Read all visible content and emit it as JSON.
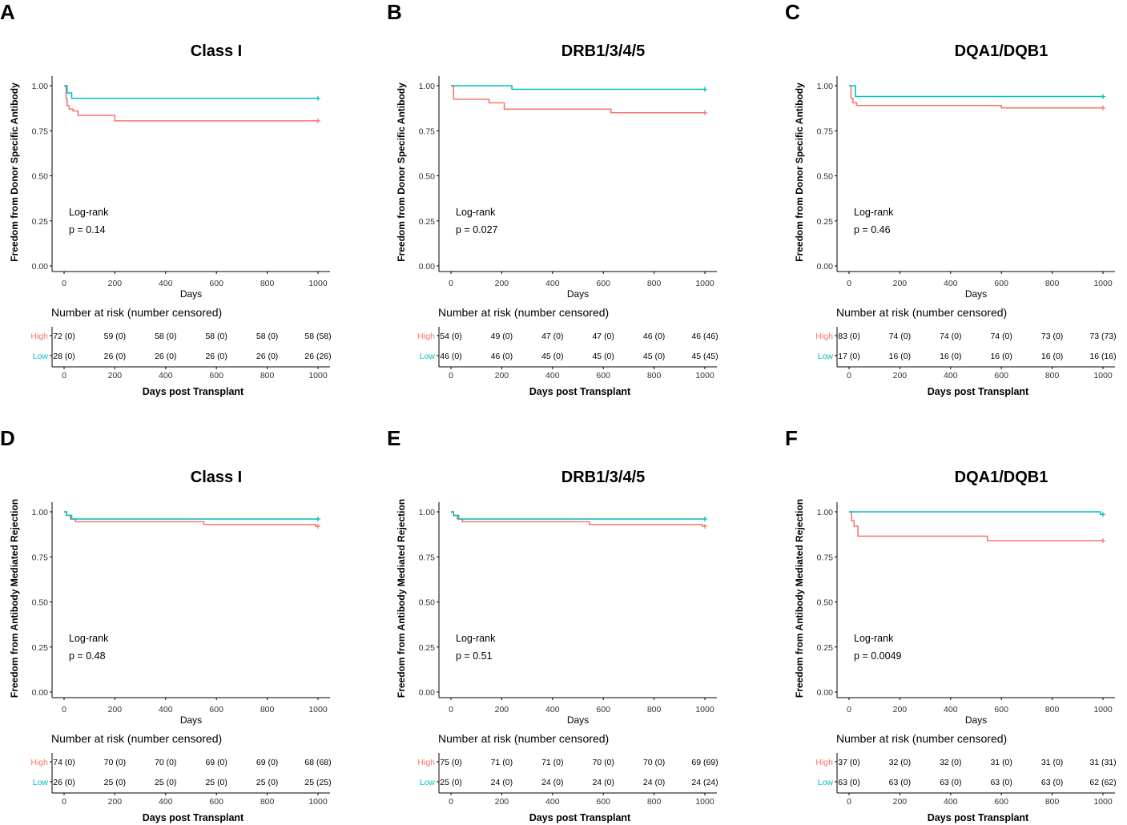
{
  "colors": {
    "high": "#F8766D",
    "low": "#00BFC4",
    "axis": "#000000",
    "text": "#000000"
  },
  "common": {
    "ylabel_top": "Freedom from Donor Specific Antibody",
    "ylabel_bottom": "Freedom from Antibody Mediated Rejection",
    "xlabel": "Days",
    "risk_title": "Number at risk (number censored)",
    "risk_xlabel": "Days post Transplant",
    "logrank_label": "Log-rank",
    "strata": [
      "High",
      "Low"
    ],
    "xticks": [
      0,
      200,
      400,
      600,
      800,
      1000
    ],
    "yticks": [
      "0.00",
      "0.25",
      "0.50",
      "0.75",
      "1.00"
    ]
  },
  "chart_data": [
    {
      "panel_letter": "A",
      "type": "line",
      "title": "Class I",
      "xlabel": "Days",
      "ylabel": "Freedom from Donor Specific Antibody",
      "xlim": [
        0,
        1000
      ],
      "ylim": [
        0,
        1
      ],
      "pvalue": "p = 0.14",
      "series": [
        {
          "name": "High",
          "x": [
            0,
            8,
            12,
            20,
            35,
            55,
            200,
            1000
          ],
          "y": [
            1.0,
            0.93,
            0.89,
            0.87,
            0.86,
            0.835,
            0.805,
            0.805
          ],
          "censor": [
            [
              1000,
              0.805
            ]
          ]
        },
        {
          "name": "Low",
          "x": [
            0,
            12,
            30,
            1000
          ],
          "y": [
            1.0,
            0.96,
            0.93,
            0.93
          ],
          "censor": [
            [
              1000,
              0.93
            ]
          ]
        }
      ],
      "risk_table": {
        "High": [
          "72 (0)",
          "59 (0)",
          "58 (0)",
          "58 (0)",
          "58 (0)",
          "58 (58)"
        ],
        "Low": [
          "28 (0)",
          "26 (0)",
          "26 (0)",
          "26 (0)",
          "26 (0)",
          "26 (26)"
        ]
      }
    },
    {
      "panel_letter": "B",
      "type": "line",
      "title": "DRB1/3/4/5",
      "xlabel": "Days",
      "ylabel": "Freedom from Donor Specific Antibody",
      "xlim": [
        0,
        1000
      ],
      "ylim": [
        0,
        1
      ],
      "pvalue": "p = 0.027",
      "series": [
        {
          "name": "High",
          "x": [
            0,
            10,
            150,
            210,
            630,
            1000
          ],
          "y": [
            1.0,
            0.925,
            0.905,
            0.87,
            0.85,
            0.85
          ],
          "censor": [
            [
              1000,
              0.85
            ]
          ]
        },
        {
          "name": "Low",
          "x": [
            0,
            240,
            1000
          ],
          "y": [
            1.0,
            0.98,
            0.98
          ],
          "censor": [
            [
              1000,
              0.98
            ]
          ]
        }
      ],
      "risk_table": {
        "High": [
          "54 (0)",
          "49 (0)",
          "47 (0)",
          "47 (0)",
          "46 (0)",
          "46 (46)"
        ],
        "Low": [
          "46 (0)",
          "46 (0)",
          "45 (0)",
          "45 (0)",
          "45 (0)",
          "45 (45)"
        ]
      }
    },
    {
      "panel_letter": "C",
      "type": "line",
      "title": "DQA1/DQB1",
      "xlabel": "Days",
      "ylabel": "Freedom from Donor Specific Antibody",
      "xlim": [
        0,
        1000
      ],
      "ylim": [
        0,
        1
      ],
      "pvalue": "p = 0.46",
      "series": [
        {
          "name": "High",
          "x": [
            0,
            8,
            15,
            30,
            600,
            1000
          ],
          "y": [
            1.0,
            0.93,
            0.905,
            0.89,
            0.877,
            0.877
          ],
          "censor": [
            [
              1000,
              0.877
            ]
          ]
        },
        {
          "name": "Low",
          "x": [
            0,
            25,
            1000
          ],
          "y": [
            1.0,
            0.94,
            0.94
          ],
          "censor": [
            [
              1000,
              0.94
            ]
          ]
        }
      ],
      "risk_table": {
        "High": [
          "83 (0)",
          "74 (0)",
          "74 (0)",
          "74 (0)",
          "73 (0)",
          "73 (73)"
        ],
        "Low": [
          "17 (0)",
          "16 (0)",
          "16 (0)",
          "16 (0)",
          "16 (0)",
          "16 (16)"
        ]
      }
    },
    {
      "panel_letter": "D",
      "type": "line",
      "title": "Class I",
      "xlabel": "Days",
      "ylabel": "Freedom from Antibody Mediated Rejection",
      "xlim": [
        0,
        1000
      ],
      "ylim": [
        0,
        1
      ],
      "pvalue": "p = 0.48",
      "series": [
        {
          "name": "High",
          "x": [
            0,
            10,
            25,
            45,
            550,
            990,
            1000
          ],
          "y": [
            1.0,
            0.98,
            0.96,
            0.945,
            0.93,
            0.92,
            0.92
          ],
          "censor": [
            [
              1000,
              0.92
            ]
          ]
        },
        {
          "name": "Low",
          "x": [
            0,
            10,
            30,
            1000
          ],
          "y": [
            1.0,
            0.98,
            0.96,
            0.96
          ],
          "censor": [
            [
              1000,
              0.96
            ]
          ]
        }
      ],
      "risk_table": {
        "High": [
          "74 (0)",
          "70 (0)",
          "70 (0)",
          "69 (0)",
          "69 (0)",
          "68 (68)"
        ],
        "Low": [
          "26 (0)",
          "25 (0)",
          "25 (0)",
          "25 (0)",
          "25 (0)",
          "25 (25)"
        ]
      }
    },
    {
      "panel_letter": "E",
      "type": "line",
      "title": "DRB1/3/4/5",
      "xlabel": "Days",
      "ylabel": "Freedom from Antibody Mediated Rejection",
      "xlim": [
        0,
        1000
      ],
      "ylim": [
        0,
        1
      ],
      "pvalue": "p = 0.51",
      "series": [
        {
          "name": "High",
          "x": [
            0,
            10,
            25,
            45,
            545,
            990,
            1000
          ],
          "y": [
            1.0,
            0.98,
            0.96,
            0.945,
            0.93,
            0.92,
            0.92
          ],
          "censor": [
            [
              1000,
              0.92
            ]
          ]
        },
        {
          "name": "Low",
          "x": [
            0,
            10,
            30,
            1000
          ],
          "y": [
            1.0,
            0.98,
            0.96,
            0.96
          ],
          "censor": [
            [
              1000,
              0.96
            ]
          ]
        }
      ],
      "risk_table": {
        "High": [
          "75 (0)",
          "71 (0)",
          "71 (0)",
          "70 (0)",
          "70 (0)",
          "69 (69)"
        ],
        "Low": [
          "25 (0)",
          "24 (0)",
          "24 (0)",
          "24 (0)",
          "24 (0)",
          "24 (24)"
        ]
      }
    },
    {
      "panel_letter": "F",
      "type": "line",
      "title": "DQA1/DQB1",
      "xlabel": "Days",
      "ylabel": "Freedom from Antibody Mediated Rejection",
      "xlim": [
        0,
        1000
      ],
      "ylim": [
        0,
        1
      ],
      "pvalue": "p = 0.0049",
      "series": [
        {
          "name": "High",
          "x": [
            0,
            10,
            20,
            35,
            545,
            1000
          ],
          "y": [
            1.0,
            0.95,
            0.92,
            0.865,
            0.84,
            0.84
          ],
          "censor": [
            [
              1000,
              0.84
            ]
          ]
        },
        {
          "name": "Low",
          "x": [
            0,
            990,
            1000
          ],
          "y": [
            1.0,
            0.985,
            0.985
          ],
          "censor": [
            [
              1000,
              0.985
            ]
          ]
        }
      ],
      "risk_table": {
        "High": [
          "37 (0)",
          "32 (0)",
          "32 (0)",
          "31 (0)",
          "31 (0)",
          "31 (31)"
        ],
        "Low": [
          "63 (0)",
          "63 (0)",
          "63 (0)",
          "63 (0)",
          "63 (0)",
          "62 (62)"
        ]
      }
    }
  ]
}
